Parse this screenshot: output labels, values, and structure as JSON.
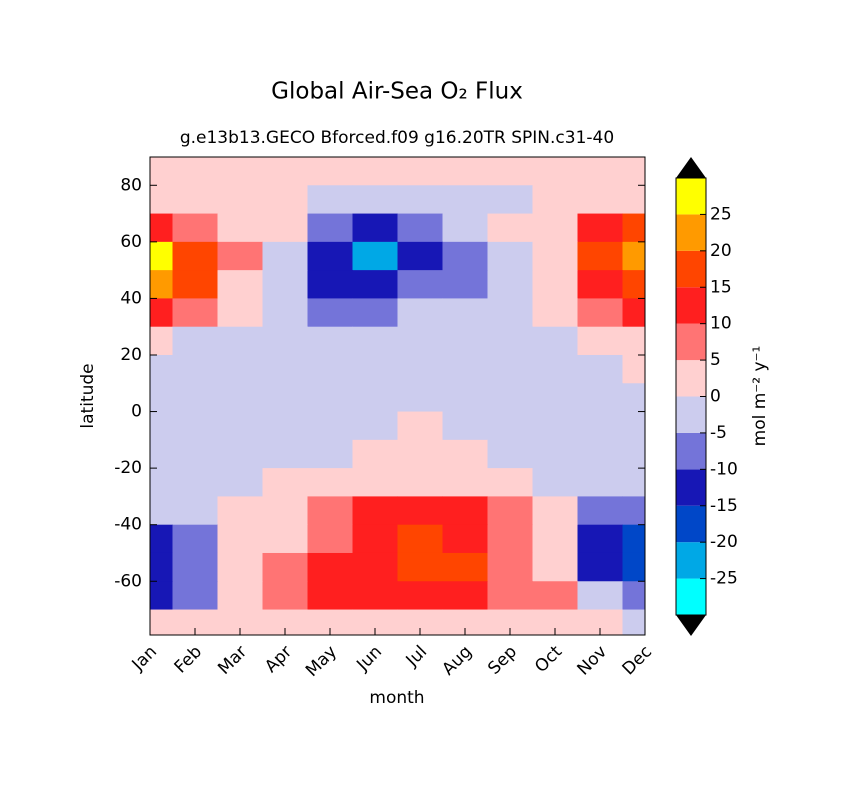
{
  "chart_data": {
    "type": "contour",
    "title": "Global Air-Sea O₂ Flux",
    "subtitle": "g.e13b13.GECO Bforced.f09 g16.20TR SPIN.c31-40",
    "x_label": "month",
    "y_label": "latitude",
    "colorbar_label": "mol m⁻² y⁻¹",
    "categories": [
      "Jan",
      "Feb",
      "Mar",
      "Apr",
      "May",
      "Jun",
      "Jul",
      "Aug",
      "Sep",
      "Oct",
      "Nov",
      "Dec"
    ],
    "y": [
      85,
      75,
      65,
      55,
      45,
      35,
      25,
      15,
      5,
      -5,
      -15,
      -25,
      -35,
      -45,
      -55,
      -65,
      -75
    ],
    "z": [
      [
        2,
        2,
        2,
        2,
        2,
        2,
        2,
        2,
        2,
        2,
        2,
        2
      ],
      [
        2,
        2,
        2,
        2,
        -2,
        -2,
        -2,
        -2,
        -2,
        2,
        2,
        2
      ],
      [
        12,
        8,
        2,
        2,
        -8,
        -12,
        -8,
        -2,
        2,
        2,
        12,
        17
      ],
      [
        27,
        17,
        7,
        -2,
        -12,
        -22,
        -12,
        -7,
        -2,
        2,
        17,
        22
      ],
      [
        22,
        17,
        2,
        -2,
        -12,
        -12,
        -7,
        -7,
        -2,
        2,
        12,
        17
      ],
      [
        12,
        7,
        2,
        -2,
        -7,
        -7,
        -2,
        -2,
        -2,
        2,
        7,
        12
      ],
      [
        2,
        -2,
        -2,
        -2,
        -2,
        -2,
        -2,
        -2,
        -2,
        -2,
        2,
        2
      ],
      [
        -2,
        -2,
        -2,
        -2,
        -2,
        -2,
        -2,
        -2,
        -2,
        -2,
        -2,
        2
      ],
      [
        -2,
        -2,
        -2,
        -2,
        -2,
        -2,
        -2,
        -2,
        -2,
        -2,
        -2,
        -2
      ],
      [
        -2,
        -2,
        -2,
        -2,
        -2,
        -2,
        2,
        -2,
        -2,
        -2,
        -2,
        -2
      ],
      [
        -2,
        -2,
        -2,
        -2,
        -2,
        2,
        2,
        2,
        -2,
        -2,
        -2,
        -2
      ],
      [
        -2,
        -2,
        -2,
        2,
        2,
        2,
        2,
        2,
        2,
        -2,
        -2,
        -2
      ],
      [
        -2,
        -2,
        2,
        2,
        7,
        12,
        12,
        12,
        7,
        2,
        -7,
        -7
      ],
      [
        -12,
        -7,
        2,
        2,
        7,
        12,
        17,
        12,
        7,
        2,
        -12,
        -17
      ],
      [
        -12,
        -7,
        2,
        7,
        12,
        12,
        17,
        17,
        7,
        2,
        -12,
        -17
      ],
      [
        -12,
        -7,
        2,
        7,
        12,
        12,
        12,
        12,
        7,
        7,
        -2,
        -7
      ],
      [
        2,
        2,
        2,
        2,
        2,
        2,
        2,
        2,
        2,
        2,
        2,
        -2
      ]
    ],
    "ylim": [
      -79,
      90
    ],
    "yticks": [
      -60,
      -40,
      -20,
      0,
      20,
      40,
      60,
      80
    ],
    "levels": [
      -30,
      -25,
      -20,
      -15,
      -10,
      -5,
      0,
      5,
      10,
      15,
      20,
      25,
      30
    ],
    "colors": [
      "#00ffff",
      "#00a8e6",
      "#0047c8",
      "#1717b5",
      "#7474d9",
      "#ccccee",
      "#ffd0d0",
      "#ff7474",
      "#ff1f1f",
      "#ff4500",
      "#ff9a00",
      "#ffff00"
    ],
    "colorbar_ticks": [
      -25,
      -20,
      -15,
      -10,
      -5,
      0,
      5,
      10,
      15,
      20,
      25
    ]
  }
}
